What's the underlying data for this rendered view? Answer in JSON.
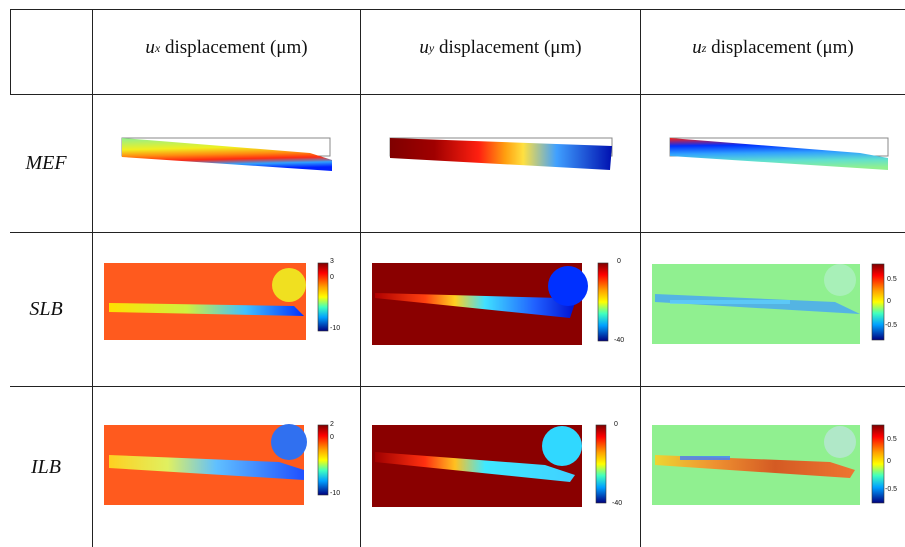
{
  "table": {
    "columns": [
      {
        "var": "u",
        "sub": "x",
        "text": "displacement (μm)"
      },
      {
        "var": "u",
        "sub": "y",
        "text": "displacement (μm)"
      },
      {
        "var": "u",
        "sub": "z",
        "text": "displacement (μm)"
      }
    ],
    "rows": [
      "MEF",
      "SLB",
      "ILB"
    ]
  },
  "colorbars": {
    "slb_ux": {
      "top": "3",
      "mid": "0",
      "bottom": "-10"
    },
    "slb_uy": {
      "top": "0",
      "bottom": "-40"
    },
    "slb_uz": {
      "top": "0.5",
      "mid": "0",
      "bottom": "-0.5"
    },
    "ilb_ux": {
      "top": "2",
      "mid": "0",
      "bottom": "-10"
    },
    "ilb_uy": {
      "top": "0",
      "bottom": "-40"
    },
    "ilb_uz": {
      "top": "0.5",
      "mid": "0",
      "bottom": "-0.5"
    }
  },
  "colors": {
    "jet_dark_red": "#7f0000",
    "jet_red": "#ff3a10",
    "jet_yellow": "#ffe000",
    "jet_cyan": "#20e0e0",
    "jet_blue": "#0020ff",
    "jet_dark_blue": "#00007f",
    "field_orange": "#ff5a1e",
    "field_green": "#90f090"
  }
}
